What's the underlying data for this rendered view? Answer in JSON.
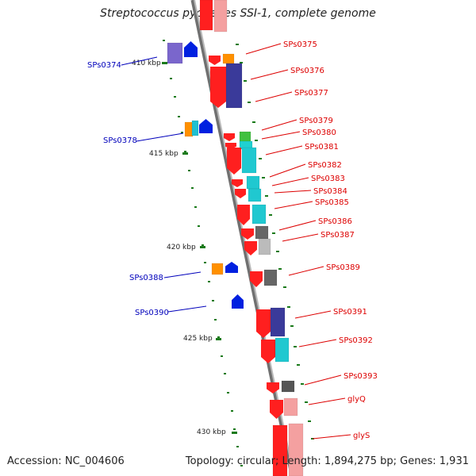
{
  "title": "Streptococcus pyogenes SSI-1, complete genome",
  "accession": "Accession: NC_004606",
  "topology": "Topology: circular; Length: 1,894,275 bp; Genes: 1,931",
  "colors": {
    "forward_label": "#0000bb",
    "reverse_label": "#dd0000",
    "backbone": "#888888",
    "tick": "#1a7a1a"
  },
  "kbp_labels": [
    "410 kbp",
    "415 kbp",
    "420 kbp",
    "425 kbp",
    "430 kbp"
  ],
  "forward_genes": [
    "SPs0374",
    "SPs0378",
    "SPs0388",
    "SPs0390"
  ],
  "reverse_genes": [
    "SPs0375",
    "SPs0376",
    "SPs0377",
    "SPs0379",
    "SPs0380",
    "SPs0381",
    "SPs0382",
    "SPs0383",
    "SPs0384",
    "SPs0385",
    "SPs0386",
    "SPs0387",
    "SPs0389",
    "SPs0391",
    "SPs0392",
    "SPs0393",
    "glyQ",
    "glyS"
  ]
}
